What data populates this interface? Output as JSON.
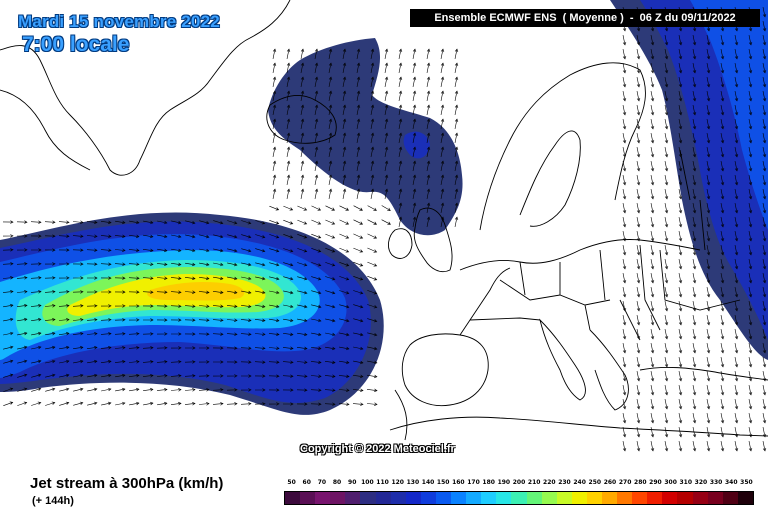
{
  "header": {
    "date": "Mardi 15 novembre 2022",
    "local_time": "7:00 locale",
    "model_run": "Ensemble ECMWF ENS  ( Moyenne )  -  06 Z du 09/11/2022"
  },
  "copyright": "Copyright © 2022 Meteociel.fr",
  "footer": {
    "variable": "Jet stream à 300hPa (km/h)",
    "forecast_hour": "(+ 144h)"
  },
  "legend": {
    "labels": [
      "50",
      "60",
      "70",
      "80",
      "90",
      "100",
      "110",
      "120",
      "130",
      "140",
      "150",
      "160",
      "170",
      "180",
      "190",
      "200",
      "210",
      "220",
      "230",
      "240",
      "250",
      "260",
      "270",
      "280",
      "290",
      "300",
      "310",
      "320",
      "330",
      "340",
      "350"
    ],
    "colors": [
      "#3c0a3c",
      "#5a0f55",
      "#78146e",
      "#6e1464",
      "#501e6e",
      "#2d2d82",
      "#232896",
      "#1e2daa",
      "#1428c8",
      "#0f3cdc",
      "#0a5af0",
      "#0a82ff",
      "#14aaff",
      "#1ecdff",
      "#28e6e6",
      "#3cf0b4",
      "#64f578",
      "#96fa50",
      "#c8fa28",
      "#f0f000",
      "#ffd200",
      "#ffaa00",
      "#ff7800",
      "#ff4600",
      "#f01e00",
      "#d20000",
      "#b40000",
      "#960014",
      "#78001e",
      "#500014",
      "#1e000a"
    ]
  },
  "map": {
    "colors": {
      "land_line": "#000000",
      "weak_wind": "#2d3a78",
      "wind_dark_blue": "#1a2fb8",
      "wind_blue": "#0f50e6",
      "wind_cyan": "#14b4ff",
      "wind_aqua": "#32e6d2",
      "wind_green": "#7cf55a",
      "wind_yellow": "#f0f000",
      "wind_orange": "#ffc800"
    }
  }
}
